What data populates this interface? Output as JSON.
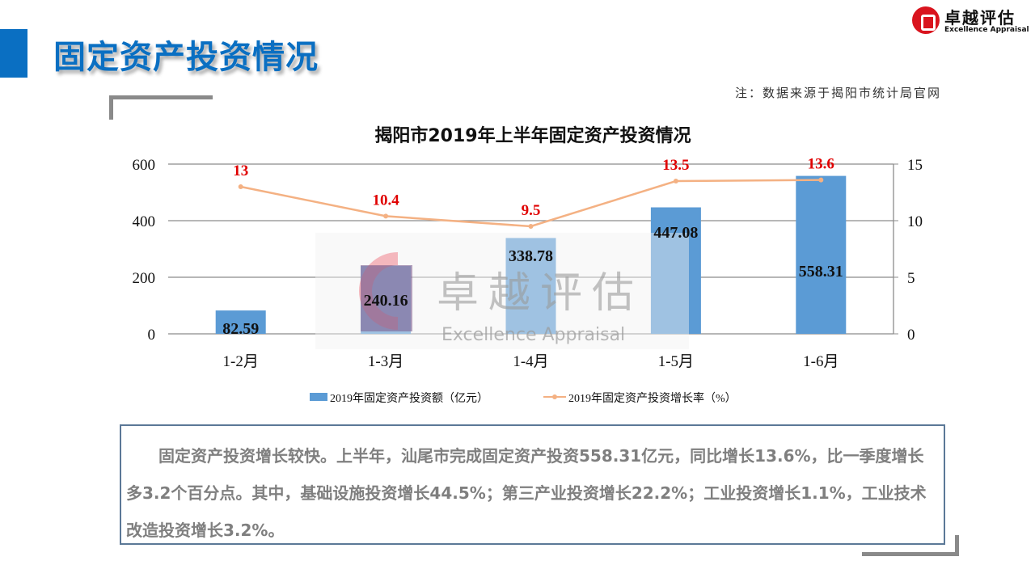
{
  "header": {
    "title": "固定资产投资情况",
    "logo_cn": "卓越评估",
    "logo_en": "Excellence Appraisal"
  },
  "note": "注：数据来源于揭阳市统计局官网",
  "watermark": {
    "cn": "卓越评估",
    "en": "Excellence Appraisal"
  },
  "chart_data": {
    "type": "bar+line",
    "title": "揭阳市2019年上半年固定资产投资情况",
    "categories": [
      "1-2月",
      "1-3月",
      "1-4月",
      "1-5月",
      "1-6月"
    ],
    "series": [
      {
        "name": "2019年固定资产投资额（亿元）",
        "type": "bar",
        "axis": "left",
        "values": [
          82.59,
          240.16,
          338.78,
          447.08,
          558.31
        ],
        "labels": [
          "82.59",
          "240.16",
          "338.78",
          "447.08",
          "558.31"
        ],
        "color": "#5b9bd5"
      },
      {
        "name": "2019年固定资产投资增长率（%）",
        "type": "line",
        "axis": "right",
        "values": [
          13,
          10.4,
          9.5,
          13.5,
          13.6
        ],
        "labels": [
          "13",
          "10.4",
          "9.5",
          "13.5",
          "13.6"
        ],
        "color": "#f4b183",
        "label_color": "#e00000"
      }
    ],
    "left_axis": {
      "ylim": [
        0,
        600
      ],
      "ticks": [
        "0",
        "200",
        "400",
        "600"
      ]
    },
    "right_axis": {
      "ylim": [
        0,
        15
      ],
      "ticks": [
        "0",
        "5",
        "10",
        "15"
      ]
    },
    "grid": true,
    "legend": "bottom"
  },
  "summary": "固定资产投资增长较快。上半年，汕尾市完成固定资产投资558.31亿元，同比增长13.6%，比一季度增长多3.2个百分点。其中，基础设施投资增长44.5%；第三产业投资增长22.2%；工业投资增长1.1%，工业技术改造投资增长3.2%。"
}
